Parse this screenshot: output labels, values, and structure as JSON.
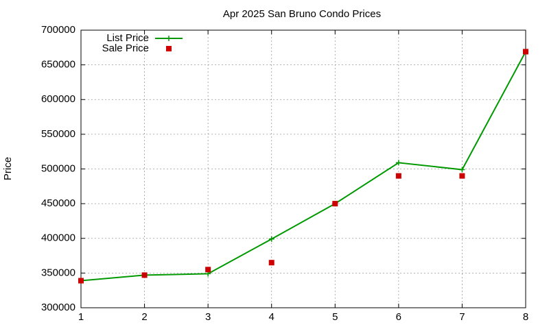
{
  "chart_data": {
    "type": "line",
    "title": "Apr 2025 San Bruno Condo Prices",
    "y_label": "Price",
    "x": [
      1,
      2,
      3,
      4,
      5,
      6,
      7,
      8
    ],
    "series": [
      {
        "name": "List Price",
        "color": "#009900",
        "line": true,
        "marker": "plus",
        "values": [
          339000,
          347000,
          349000,
          399000,
          450000,
          509000,
          499000,
          669000
        ]
      },
      {
        "name": "Sale Price",
        "color": "#cc0000",
        "line": false,
        "marker": "square",
        "values": [
          339000,
          347000,
          355000,
          365000,
          450000,
          490000,
          490000,
          669000
        ]
      }
    ],
    "xlim": [
      1,
      8
    ],
    "xticks": [
      1,
      2,
      3,
      4,
      5,
      6,
      7,
      8
    ],
    "ylim": [
      300000,
      700000
    ],
    "yticks": [
      300000,
      350000,
      400000,
      450000,
      500000,
      550000,
      600000,
      650000,
      700000
    ],
    "grid": true,
    "legend": "top-left"
  }
}
